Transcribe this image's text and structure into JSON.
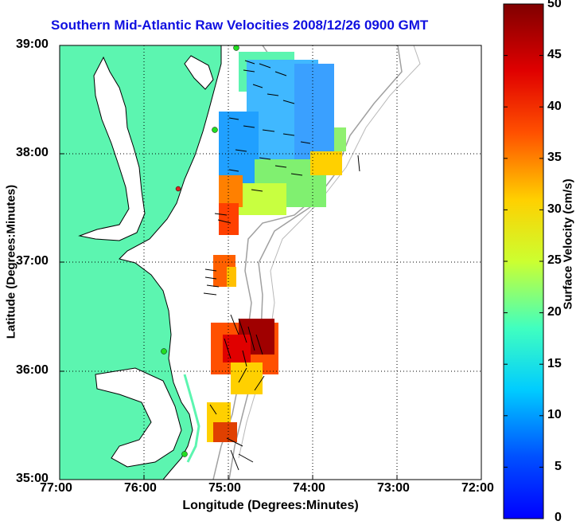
{
  "title": "Southern Mid-Atlantic Raw Velocities 2008/12/26 0900 GMT",
  "xlabel": "Longitude (Degrees:Minutes)",
  "ylabel": "Latitude (Degrees:Minutes)",
  "colorbar_label": "Surface Velocity (cm/s)",
  "colors": {
    "title": "#1010e0",
    "land": "#5cf5b0",
    "coast": "#000000",
    "grid": "#000000",
    "bathy": "#a0a0a0",
    "station": "#22dd22",
    "station_alt": "#dd2222"
  },
  "x_ticks": [
    "77:00",
    "76:00",
    "75:00",
    "74:00",
    "73:00",
    "72:00"
  ],
  "y_ticks": [
    "39:00",
    "38:00",
    "37:00",
    "36:00",
    "35:00"
  ],
  "colorbar_ticks": [
    "50",
    "45",
    "40",
    "35",
    "30",
    "25",
    "20",
    "15",
    "10",
    "5",
    "0"
  ],
  "chart_data": {
    "type": "heatmap",
    "title": "Southern Mid-Atlantic Raw Velocities 2008/12/26 0900 GMT",
    "xlabel": "Longitude (Degrees:Minutes)",
    "ylabel": "Latitude (Degrees:Minutes)",
    "xlim": [
      -77,
      -72
    ],
    "ylim": [
      35,
      39
    ],
    "colorbar": {
      "label": "Surface Velocity (cm/s)",
      "range": [
        0,
        50
      ]
    },
    "grid": true,
    "legend_position": "colorbar-right"
  }
}
